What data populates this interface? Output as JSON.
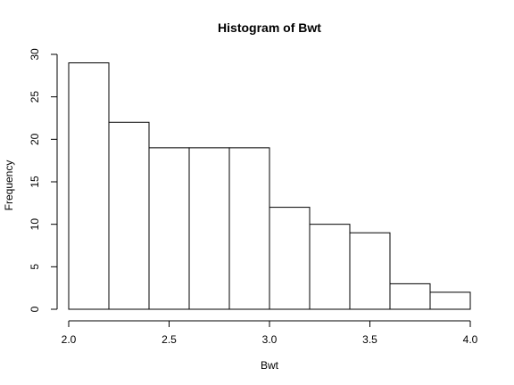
{
  "chart_data": {
    "type": "bar",
    "title": "Histogram of Bwt",
    "xlabel": "Bwt",
    "ylabel": "Frequency",
    "bins": [
      {
        "x0": 2.0,
        "x1": 2.2,
        "value": 29
      },
      {
        "x0": 2.2,
        "x1": 2.4,
        "value": 22
      },
      {
        "x0": 2.4,
        "x1": 2.6,
        "value": 19
      },
      {
        "x0": 2.6,
        "x1": 2.8,
        "value": 19
      },
      {
        "x0": 2.8,
        "x1": 3.0,
        "value": 19
      },
      {
        "x0": 3.0,
        "x1": 3.2,
        "value": 12
      },
      {
        "x0": 3.2,
        "x1": 3.4,
        "value": 10
      },
      {
        "x0": 3.4,
        "x1": 3.6,
        "value": 9
      },
      {
        "x0": 3.6,
        "x1": 3.8,
        "value": 3
      },
      {
        "x0": 3.8,
        "x1": 4.0,
        "value": 2
      }
    ],
    "xlim": [
      2.0,
      4.0
    ],
    "ylim": [
      0,
      30
    ],
    "x_ticks": [
      "2.0",
      "2.5",
      "3.0",
      "3.5",
      "4.0"
    ],
    "y_ticks": [
      "0",
      "5",
      "10",
      "15",
      "20",
      "25",
      "30"
    ],
    "grid": false,
    "legend": "none",
    "colors": {
      "bar_fill": "#ffffff",
      "bar_stroke": "#000000"
    }
  }
}
